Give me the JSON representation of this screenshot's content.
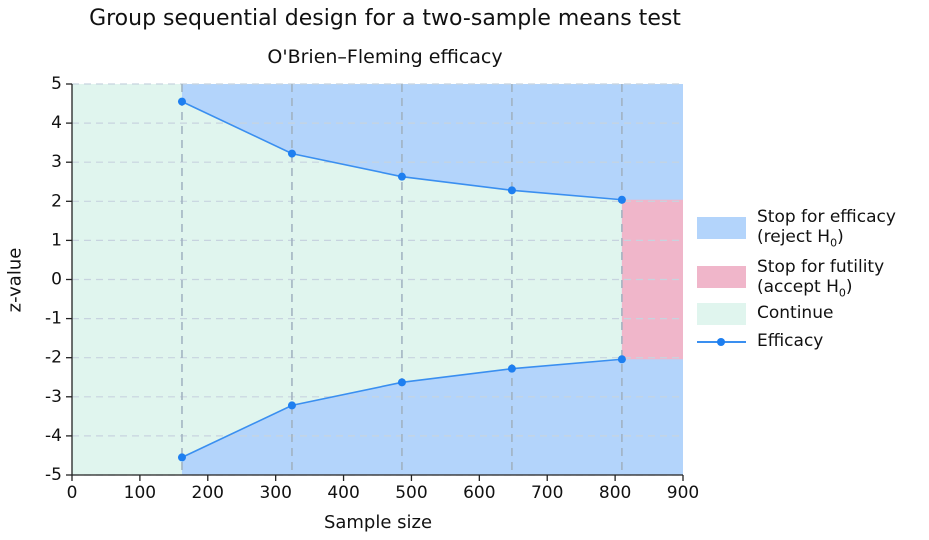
{
  "chart_data": {
    "type": "area",
    "title": "Group sequential design for a two-sample means test",
    "subtitle": "O'Brien–Fleming efficacy",
    "xlabel": "Sample size",
    "ylabel": "z-value",
    "xlim": [
      0,
      900
    ],
    "ylim": [
      -5,
      5
    ],
    "x_ticks": [
      "0",
      "100",
      "200",
      "300",
      "400",
      "500",
      "600",
      "700",
      "800",
      "900"
    ],
    "y_ticks": [
      "5",
      "4",
      "3",
      "2",
      "1",
      "0",
      "-1",
      "-2",
      "-3",
      "-4",
      "-5"
    ],
    "grid": true,
    "legend_position": "right",
    "looks": [
      162,
      324,
      486,
      648,
      810
    ],
    "series": [
      {
        "name": "Efficacy",
        "x": [
          162,
          324,
          486,
          648,
          810
        ],
        "upper": [
          4.55,
          3.22,
          2.63,
          2.28,
          2.04
        ],
        "lower": [
          -4.55,
          -3.22,
          -2.63,
          -2.28,
          -2.04
        ]
      }
    ],
    "futility_region": {
      "x_start": 810,
      "x_end": 900,
      "lower": -2.04,
      "upper": 2.04
    },
    "legend": [
      {
        "label": "Stop for efficacy",
        "sub_prefix": "(reject H",
        "sub_index": "0",
        "sub_suffix": ")",
        "color": "#b3d4fb"
      },
      {
        "label": "Stop for futility",
        "sub_prefix": "(accept H",
        "sub_index": "0",
        "sub_suffix": ")",
        "color": "#f0b6ca"
      },
      {
        "label": "Continue",
        "color": "#e0f5ee"
      },
      {
        "label": "Efficacy",
        "color": "#3a8ff0"
      }
    ],
    "colors": {
      "efficacy_region": "#b3d4fb",
      "futility_region": "#f0b6ca",
      "continue_region": "#e0f5ee",
      "line": "#3a8ff0",
      "marker": "#1e7ff0"
    }
  }
}
